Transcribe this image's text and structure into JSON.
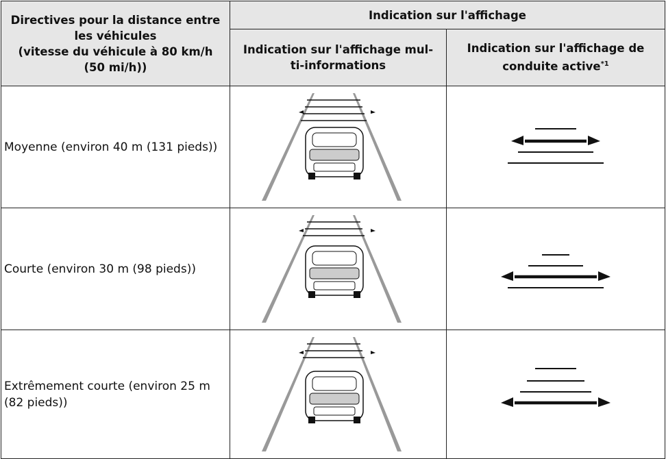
{
  "table": {
    "header": {
      "col1_lines": [
        "Directives pour la distance entre",
        "les véhicules",
        "(vitesse du véhicule à 80 km/h",
        "(50 mi/h))"
      ],
      "group": "Indication sur l'affichage",
      "col2_lines": [
        "Indication sur l'affichage mul-",
        "ti-informations"
      ],
      "col3_lines": [
        "Indication sur l'affichage de",
        "conduite active"
      ],
      "col3_note": "*1"
    },
    "rows": [
      [
        "Moyenne (environ 40 m (131 pieds))"
      ],
      [
        "Courte (environ 30 m (98 pieds))"
      ],
      [
        "Extrêmement courte (environ 25 m (82 pieds))"
      ]
    ]
  }
}
